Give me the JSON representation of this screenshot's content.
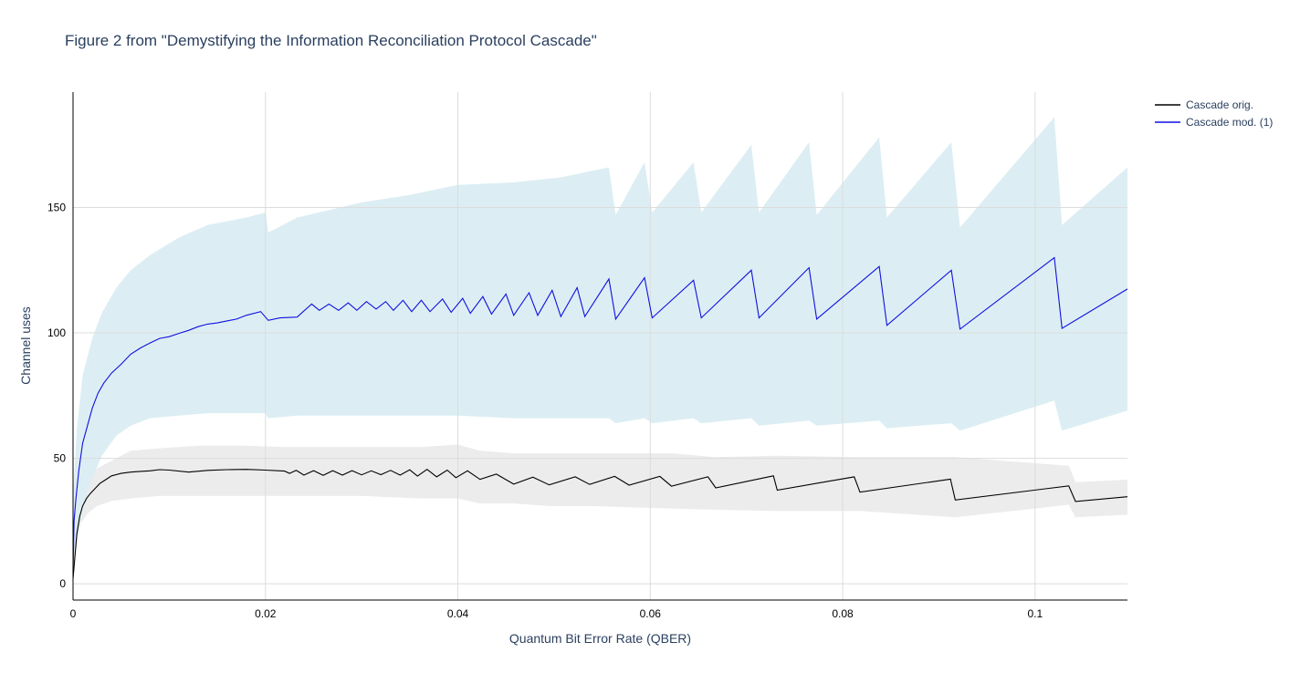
{
  "chart_data": {
    "type": "line",
    "title": "Figure 2 from \"Demystifying the Information Reconciliation Protocol Cascade\"",
    "xlabel": "Quantum Bit Error Rate (QBER)",
    "ylabel": "Channel uses",
    "xlim": [
      0,
      0.1096
    ],
    "ylim": [
      -6.5,
      196
    ],
    "xticks": [
      0,
      0.02,
      0.04,
      0.06,
      0.08,
      0.1
    ],
    "xtick_labels": [
      "0",
      "0.02",
      "0.04",
      "0.06",
      "0.08",
      "0.1"
    ],
    "yticks": [
      0,
      50,
      100,
      150
    ],
    "ytick_labels": [
      "0",
      "50",
      "100",
      "150"
    ],
    "grid": true,
    "legend_position": "top-right",
    "series": [
      {
        "name": "Cascade orig.",
        "color": "#000000",
        "band_color": "#ececec",
        "points": [
          [
            0.0,
            2
          ],
          [
            0.0002,
            11
          ],
          [
            0.0004,
            20
          ],
          [
            0.0007,
            27
          ],
          [
            0.001,
            31
          ],
          [
            0.0014,
            34
          ],
          [
            0.0018,
            36
          ],
          [
            0.0023,
            38
          ],
          [
            0.0028,
            40
          ],
          [
            0.0034,
            41.5
          ],
          [
            0.004,
            43
          ],
          [
            0.005,
            44
          ],
          [
            0.006,
            44.5
          ],
          [
            0.007,
            44.8
          ],
          [
            0.008,
            45
          ],
          [
            0.009,
            45.5
          ],
          [
            0.01,
            45.3
          ],
          [
            0.012,
            44.5
          ],
          [
            0.014,
            45.2
          ],
          [
            0.016,
            45.5
          ],
          [
            0.018,
            45.6
          ],
          [
            0.02,
            45.3
          ],
          [
            0.022,
            44.9
          ],
          [
            0.0225,
            44
          ],
          [
            0.0232,
            45.2
          ],
          [
            0.024,
            43.3
          ],
          [
            0.025,
            45.1
          ],
          [
            0.026,
            43.2
          ],
          [
            0.027,
            45.1
          ],
          [
            0.028,
            43.3
          ],
          [
            0.029,
            45.1
          ],
          [
            0.03,
            43.4
          ],
          [
            0.031,
            45.0
          ],
          [
            0.032,
            43.5
          ],
          [
            0.033,
            45.2
          ],
          [
            0.034,
            43.3
          ],
          [
            0.035,
            45.4
          ],
          [
            0.0358,
            42.9
          ],
          [
            0.0368,
            45.6
          ],
          [
            0.0378,
            42.6
          ],
          [
            0.0389,
            45.3
          ],
          [
            0.0398,
            42.3
          ],
          [
            0.041,
            45.0
          ],
          [
            0.0423,
            41.6
          ],
          [
            0.044,
            43.7
          ],
          [
            0.0458,
            39.7
          ],
          [
            0.0478,
            42.5
          ],
          [
            0.0495,
            39.4
          ],
          [
            0.0522,
            42.6
          ],
          [
            0.0537,
            39.6
          ],
          [
            0.0563,
            42.8
          ],
          [
            0.0578,
            39.3
          ],
          [
            0.061,
            42.8
          ],
          [
            0.0622,
            38.9
          ],
          [
            0.066,
            42.6
          ],
          [
            0.0668,
            38.2
          ],
          [
            0.0728,
            43.0
          ],
          [
            0.0732,
            37.3
          ],
          [
            0.0812,
            42.6
          ],
          [
            0.0818,
            36.5
          ],
          [
            0.0912,
            41.7
          ],
          [
            0.0917,
            33.4
          ],
          [
            0.1035,
            39.0
          ],
          [
            0.1042,
            32.8
          ],
          [
            0.1096,
            34.7
          ]
        ],
        "band": [
          [
            0.0,
            0,
            5
          ],
          [
            0.0003,
            14,
            30
          ],
          [
            0.0008,
            24,
            36
          ],
          [
            0.0015,
            28,
            42
          ],
          [
            0.0025,
            31,
            46
          ],
          [
            0.004,
            33,
            49
          ],
          [
            0.006,
            34,
            53
          ],
          [
            0.009,
            35,
            54
          ],
          [
            0.013,
            35,
            55
          ],
          [
            0.018,
            35,
            55
          ],
          [
            0.022,
            35,
            54.5
          ],
          [
            0.03,
            35,
            54.5
          ],
          [
            0.036,
            34,
            54.5
          ],
          [
            0.04,
            34,
            55.5
          ],
          [
            0.0423,
            32,
            53
          ],
          [
            0.0458,
            32,
            52
          ],
          [
            0.0495,
            31,
            52
          ],
          [
            0.0537,
            31,
            52
          ],
          [
            0.0578,
            30.5,
            52
          ],
          [
            0.0622,
            30,
            52
          ],
          [
            0.0668,
            29.5,
            50.5
          ],
          [
            0.0732,
            29,
            51
          ],
          [
            0.0818,
            29,
            50.5
          ],
          [
            0.0917,
            26.5,
            50.5
          ],
          [
            0.1035,
            31.5,
            47
          ],
          [
            0.1042,
            26.5,
            40.5
          ],
          [
            0.1096,
            27.5,
            41.5
          ]
        ]
      },
      {
        "name": "Cascade mod. (1)",
        "color": "#1010e0",
        "band_color": "#dceef3",
        "points": [
          [
            0.0,
            5
          ],
          [
            0.0001,
            25
          ],
          [
            0.0003,
            34
          ],
          [
            0.0006,
            45
          ],
          [
            0.001,
            56
          ],
          [
            0.0015,
            63
          ],
          [
            0.002,
            70
          ],
          [
            0.0026,
            76
          ],
          [
            0.0032,
            80
          ],
          [
            0.004,
            84
          ],
          [
            0.005,
            87.5
          ],
          [
            0.006,
            91.5
          ],
          [
            0.007,
            94
          ],
          [
            0.008,
            96
          ],
          [
            0.009,
            97.8
          ],
          [
            0.01,
            98.5
          ],
          [
            0.011,
            99.8
          ],
          [
            0.012,
            101
          ],
          [
            0.013,
            102.5
          ],
          [
            0.014,
            103.5
          ],
          [
            0.015,
            104
          ],
          [
            0.016,
            104.8
          ],
          [
            0.017,
            105.5
          ],
          [
            0.018,
            107
          ],
          [
            0.0195,
            108.5
          ],
          [
            0.0203,
            105
          ],
          [
            0.0215,
            106
          ],
          [
            0.0233,
            106.3
          ],
          [
            0.0248,
            111.5
          ],
          [
            0.0256,
            109
          ],
          [
            0.0266,
            111.5
          ],
          [
            0.0276,
            109
          ],
          [
            0.0286,
            112
          ],
          [
            0.0295,
            109
          ],
          [
            0.0305,
            112.5
          ],
          [
            0.0315,
            109.5
          ],
          [
            0.0325,
            112.5
          ],
          [
            0.0333,
            109
          ],
          [
            0.0343,
            113
          ],
          [
            0.0352,
            108.5
          ],
          [
            0.0362,
            113
          ],
          [
            0.0371,
            108.5
          ],
          [
            0.0384,
            113.5
          ],
          [
            0.0393,
            108.2
          ],
          [
            0.0405,
            113.8
          ],
          [
            0.0413,
            107.8
          ],
          [
            0.0426,
            114.5
          ],
          [
            0.0435,
            107.5
          ],
          [
            0.045,
            115.5
          ],
          [
            0.0458,
            107
          ],
          [
            0.0474,
            116
          ],
          [
            0.0483,
            107
          ],
          [
            0.0498,
            117
          ],
          [
            0.0507,
            106.5
          ],
          [
            0.0524,
            118
          ],
          [
            0.0532,
            106.5
          ],
          [
            0.0557,
            121.5
          ],
          [
            0.0564,
            105.5
          ],
          [
            0.0594,
            122
          ],
          [
            0.0602,
            106
          ],
          [
            0.0645,
            121
          ],
          [
            0.0653,
            106
          ],
          [
            0.0705,
            125
          ],
          [
            0.0713,
            106
          ],
          [
            0.0765,
            126
          ],
          [
            0.0773,
            105.5
          ],
          [
            0.0838,
            126.5
          ],
          [
            0.0846,
            103
          ],
          [
            0.0913,
            125
          ],
          [
            0.0922,
            101.5
          ],
          [
            0.102,
            130
          ],
          [
            0.1028,
            101.8
          ],
          [
            0.1096,
            117.5
          ]
        ],
        "band": [
          [
            0.0,
            10,
            35
          ],
          [
            0.0004,
            18,
            62
          ],
          [
            0.001,
            30,
            83
          ],
          [
            0.002,
            42,
            98
          ],
          [
            0.003,
            51,
            108
          ],
          [
            0.0045,
            59,
            118
          ],
          [
            0.006,
            63,
            125
          ],
          [
            0.008,
            66,
            131
          ],
          [
            0.011,
            67,
            138
          ],
          [
            0.014,
            68,
            143
          ],
          [
            0.018,
            68,
            146
          ],
          [
            0.02,
            68,
            148
          ],
          [
            0.0203,
            66,
            140
          ],
          [
            0.0233,
            67,
            146
          ],
          [
            0.03,
            67,
            152
          ],
          [
            0.035,
            67,
            155
          ],
          [
            0.04,
            67,
            159
          ],
          [
            0.0458,
            66,
            160
          ],
          [
            0.0507,
            66,
            162
          ],
          [
            0.0557,
            66,
            166
          ],
          [
            0.0564,
            64,
            147
          ],
          [
            0.0594,
            66,
            168
          ],
          [
            0.0602,
            64,
            148
          ],
          [
            0.0645,
            66,
            168
          ],
          [
            0.0653,
            64,
            148
          ],
          [
            0.0705,
            66,
            175
          ],
          [
            0.0713,
            63,
            148
          ],
          [
            0.0765,
            65,
            176
          ],
          [
            0.0773,
            63,
            147
          ],
          [
            0.0838,
            65,
            178
          ],
          [
            0.0846,
            62,
            146
          ],
          [
            0.0913,
            64,
            176
          ],
          [
            0.0922,
            61,
            142
          ],
          [
            0.102,
            73,
            186
          ],
          [
            0.1028,
            61,
            143
          ],
          [
            0.1096,
            69,
            166
          ]
        ]
      }
    ]
  }
}
